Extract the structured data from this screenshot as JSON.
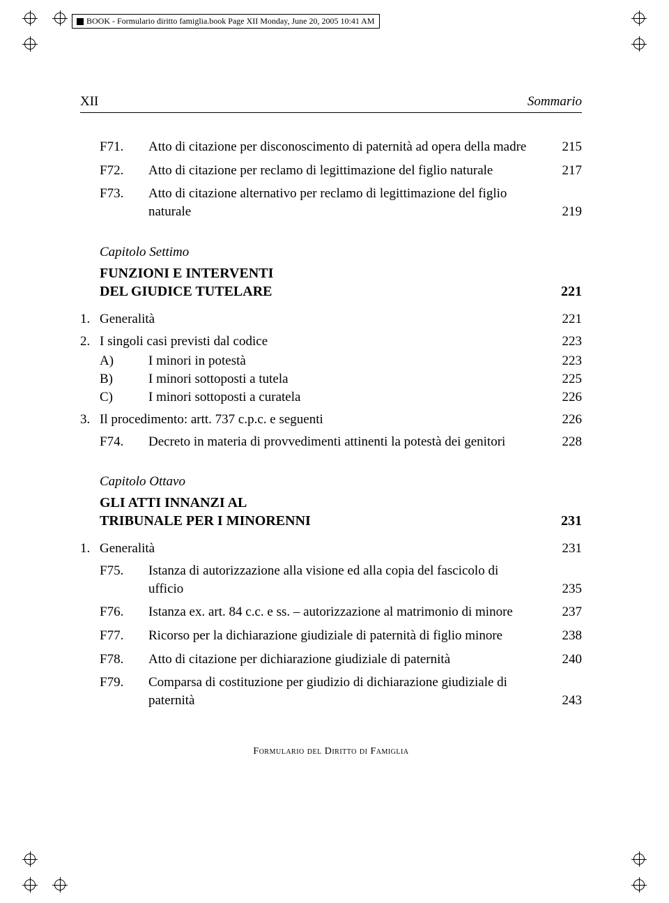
{
  "file_tag": "BOOK - Formulario diritto famiglia.book  Page XII  Monday, June 20, 2005  10:41 AM",
  "header": {
    "page_num": "XII",
    "sommario": "Sommario"
  },
  "entries_top": [
    {
      "code": "F71.",
      "text": "Atto di citazione per disconoscimento di paternità ad opera della madre",
      "page": "215"
    },
    {
      "code": "F72.",
      "text": "Atto di citazione per reclamo di legittimazione del figlio naturale",
      "page": "217"
    },
    {
      "code": "F73.",
      "text": "Atto di citazione alternativo per reclamo di legittimazione del figlio naturale",
      "page": "219"
    }
  ],
  "chapter7": {
    "label": "Capitolo Settimo",
    "title_l1": "FUNZIONI E INTERVENTI",
    "title_l2": "DEL GIUDICE TUTELARE",
    "page": "221",
    "items": [
      {
        "num": "1.",
        "text": "Generalità",
        "page": "221"
      },
      {
        "num": "2.",
        "text": "I singoli casi previsti dal codice",
        "page": "223"
      }
    ],
    "subitems2": [
      {
        "code": "A)",
        "text": "I minori in potestà",
        "page": "223"
      },
      {
        "code": "B)",
        "text": "I minori sottoposti a tutela",
        "page": "225"
      },
      {
        "code": "C)",
        "text": "I minori sottoposti a curatela",
        "page": "226"
      }
    ],
    "item3": {
      "num": "3.",
      "text": "Il procedimento: artt. 737 c.p.c. e seguenti",
      "page": "226"
    },
    "f74": {
      "code": "F74.",
      "text": "Decreto in materia di provvedimenti attinenti la potestà dei genitori",
      "page": "228"
    }
  },
  "chapter8": {
    "label": "Capitolo Ottavo",
    "title_l1": "GLI ATTI INNANZI AL",
    "title_l2": "TRIBUNALE PER I MINORENNI",
    "page": "231",
    "item1": {
      "num": "1.",
      "text": "Generalità",
      "page": "231"
    },
    "fitems": [
      {
        "code": "F75.",
        "text": "Istanza di autorizzazione alla visione ed alla copia del fascicolo di ufficio",
        "page": "235"
      },
      {
        "code": "F76.",
        "text": "Istanza ex. art. 84 c.c. e ss. – autorizzazione al matrimonio di minore",
        "page": "237"
      },
      {
        "code": "F77.",
        "text": "Ricorso per la dichiarazione giudiziale di paternità di figlio minore",
        "page": "238"
      },
      {
        "code": "F78.",
        "text": "Atto di citazione per dichiarazione giudiziale di paternità",
        "page": "240"
      },
      {
        "code": "F79.",
        "text": "Comparsa di costituzione per giudizio di dichiarazione giudiziale di paternità",
        "page": "243"
      }
    ]
  },
  "footer": "Formulario del Diritto di Famiglia"
}
